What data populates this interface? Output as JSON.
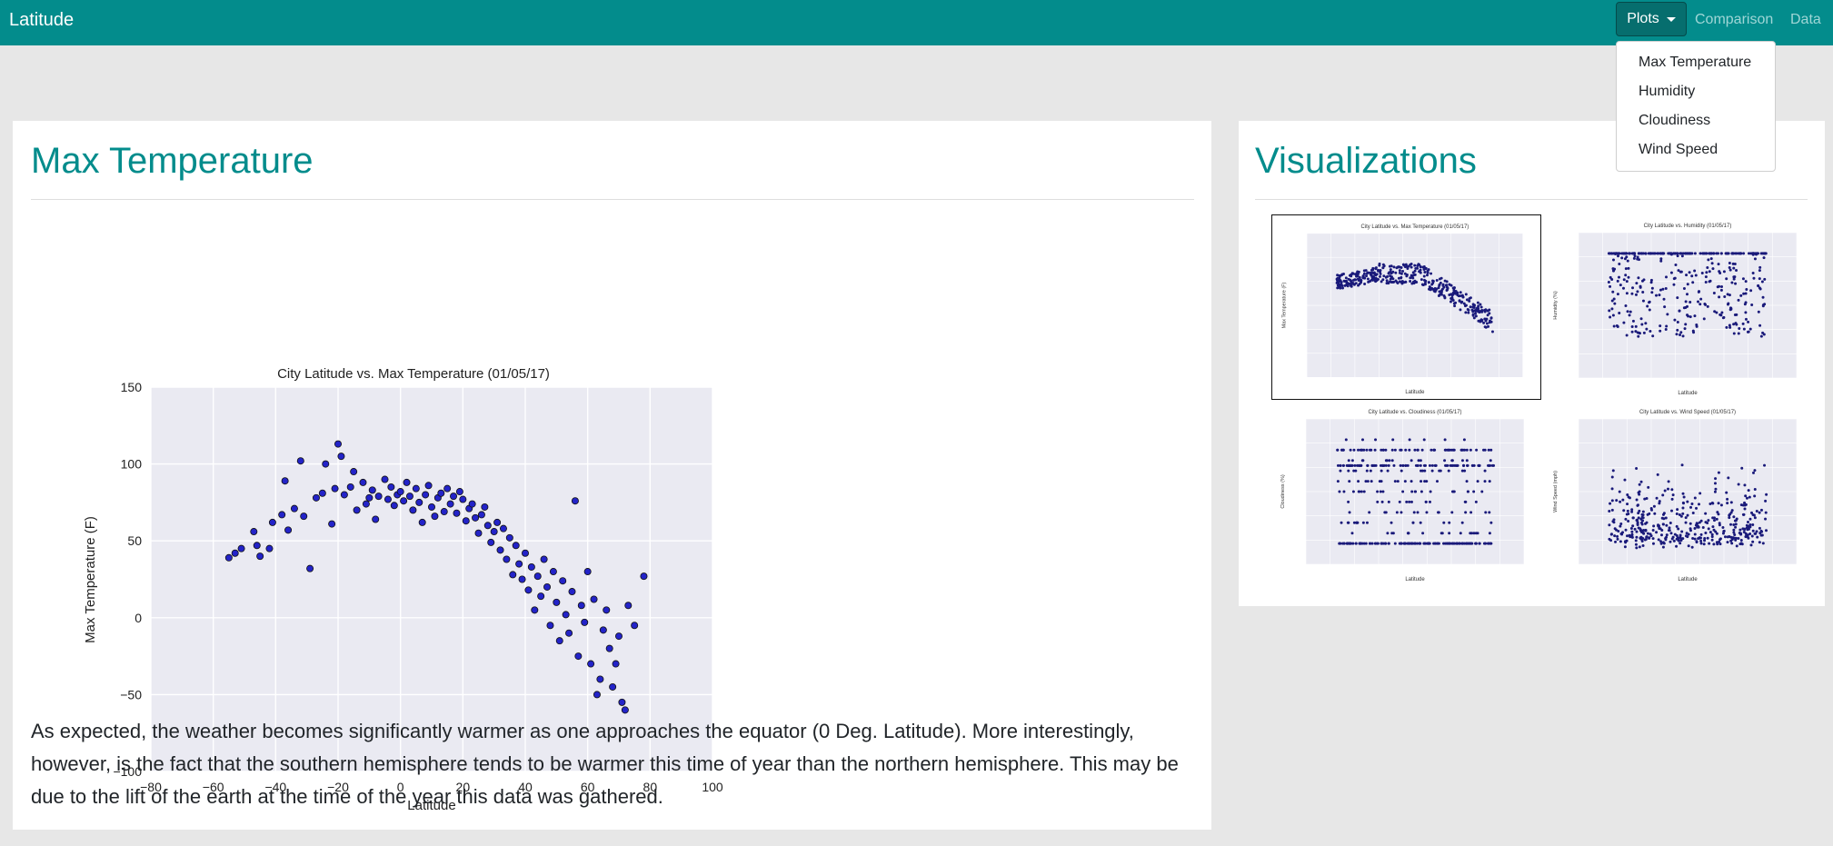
{
  "navbar": {
    "brand": "Latitude",
    "plots_label": "Plots",
    "comparison_label": "Comparison",
    "data_label": "Data",
    "bg": "#038c8c"
  },
  "dropdown": {
    "items": [
      "Max Temperature",
      "Humidity",
      "Cloudiness",
      "Wind Speed"
    ]
  },
  "main": {
    "title": "Max Temperature",
    "description": "As expected, the weather becomes significantly warmer as one approaches the equator (0 Deg. Latitude). More interestingly, however, is the fact that the southern hemisphere tends to be warmer this time of year than the northern hemisphere. This may be due to the lift of the earth at the time of the year this data was gathered."
  },
  "sidebar": {
    "title": "Visualizations"
  },
  "chart_data": [
    {
      "type": "scatter",
      "title": "City Latitude vs. Max Temperature (01/05/17)",
      "xlabel": "Latitude",
      "ylabel": "Max Temperature (F)",
      "xlim": [
        -80,
        100
      ],
      "ylim": [
        -100,
        150
      ],
      "xticks": [
        -80,
        -60,
        -40,
        -20,
        0,
        20,
        40,
        60,
        80,
        100
      ],
      "yticks": [
        -100,
        -50,
        0,
        50,
        100,
        150
      ],
      "grid": true,
      "point_color": "#2323c8",
      "points": [
        [
          -55,
          39
        ],
        [
          -53,
          42
        ],
        [
          -51,
          45
        ],
        [
          -47,
          56
        ],
        [
          -46,
          47
        ],
        [
          -45,
          40
        ],
        [
          -42,
          45
        ],
        [
          -41,
          62
        ],
        [
          -38,
          67
        ],
        [
          -37,
          89
        ],
        [
          -36,
          57
        ],
        [
          -34,
          71
        ],
        [
          -32,
          102
        ],
        [
          -31,
          66
        ],
        [
          -29,
          32
        ],
        [
          -27,
          78
        ],
        [
          -25,
          81
        ],
        [
          -24,
          100
        ],
        [
          -22,
          61
        ],
        [
          -21,
          84
        ],
        [
          -20,
          113
        ],
        [
          -19,
          105
        ],
        [
          -18,
          80
        ],
        [
          -16,
          85
        ],
        [
          -15,
          95
        ],
        [
          -14,
          70
        ],
        [
          -12,
          88
        ],
        [
          -11,
          74
        ],
        [
          -10,
          78
        ],
        [
          -9,
          83
        ],
        [
          -8,
          64
        ],
        [
          -7,
          79
        ],
        [
          -5,
          90
        ],
        [
          -4,
          77
        ],
        [
          -3,
          85
        ],
        [
          -2,
          73
        ],
        [
          -1,
          80
        ],
        [
          0,
          82
        ],
        [
          1,
          76
        ],
        [
          2,
          88
        ],
        [
          3,
          79
        ],
        [
          4,
          70
        ],
        [
          5,
          84
        ],
        [
          6,
          75
        ],
        [
          7,
          62
        ],
        [
          8,
          80
        ],
        [
          9,
          86
        ],
        [
          10,
          72
        ],
        [
          11,
          66
        ],
        [
          12,
          78
        ],
        [
          13,
          81
        ],
        [
          14,
          69
        ],
        [
          15,
          84
        ],
        [
          16,
          74
        ],
        [
          17,
          79
        ],
        [
          18,
          68
        ],
        [
          19,
          82
        ],
        [
          20,
          77
        ],
        [
          21,
          63
        ],
        [
          22,
          71
        ],
        [
          23,
          74
        ],
        [
          24,
          65
        ],
        [
          25,
          55
        ],
        [
          26,
          67
        ],
        [
          27,
          72
        ],
        [
          28,
          60
        ],
        [
          29,
          49
        ],
        [
          30,
          56
        ],
        [
          31,
          62
        ],
        [
          32,
          44
        ],
        [
          33,
          58
        ],
        [
          34,
          38
        ],
        [
          35,
          52
        ],
        [
          36,
          28
        ],
        [
          37,
          47
        ],
        [
          38,
          35
        ],
        [
          39,
          25
        ],
        [
          40,
          42
        ],
        [
          41,
          18
        ],
        [
          42,
          33
        ],
        [
          43,
          5
        ],
        [
          44,
          27
        ],
        [
          45,
          14
        ],
        [
          46,
          38
        ],
        [
          47,
          20
        ],
        [
          48,
          -5
        ],
        [
          49,
          30
        ],
        [
          50,
          10
        ],
        [
          51,
          -15
        ],
        [
          52,
          24
        ],
        [
          53,
          2
        ],
        [
          54,
          -10
        ],
        [
          55,
          17
        ],
        [
          56,
          76
        ],
        [
          57,
          -25
        ],
        [
          58,
          8
        ],
        [
          59,
          -3
        ],
        [
          60,
          30
        ],
        [
          61,
          -30
        ],
        [
          62,
          12
        ],
        [
          63,
          -50
        ],
        [
          64,
          -40
        ],
        [
          65,
          -8
        ],
        [
          66,
          5
        ],
        [
          67,
          -20
        ],
        [
          68,
          -45
        ],
        [
          69,
          -30
        ],
        [
          70,
          -12
        ],
        [
          71,
          -55
        ],
        [
          72,
          -60
        ],
        [
          73,
          8
        ],
        [
          75,
          -5
        ],
        [
          78,
          27
        ]
      ]
    },
    {
      "type": "scatter",
      "title": "City Latitude vs. Max Temperature (01/05/17)",
      "xlabel": "Latitude",
      "ylabel": "Max Temperature (F)",
      "xlim": [
        -80,
        100
      ],
      "ylim": [
        -100,
        150
      ]
    },
    {
      "type": "scatter",
      "title": "City Latitude vs. Humidity (01/05/17)",
      "xlabel": "Latitude",
      "ylabel": "Humidity (%)",
      "xlim": [
        -80,
        100
      ],
      "ylim": [
        -20,
        120
      ]
    },
    {
      "type": "scatter",
      "title": "City Latitude vs. Cloudiness (01/05/17)",
      "xlabel": "Latitude",
      "ylabel": "Cloudiness (%)",
      "xlim": [
        -80,
        100
      ],
      "ylim": [
        -20,
        120
      ]
    },
    {
      "type": "scatter",
      "title": "City Latitude vs. Wind Speed (01/05/17)",
      "xlabel": "Latitude",
      "ylabel": "Wind Speed (mph)",
      "xlim": [
        -80,
        100
      ],
      "ylim": [
        -5,
        40
      ]
    }
  ]
}
